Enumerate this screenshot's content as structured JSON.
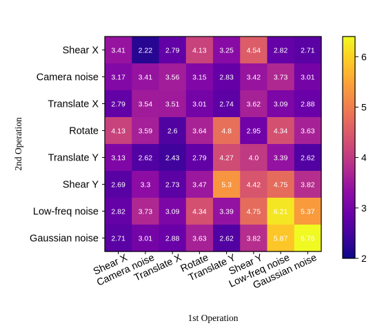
{
  "chart_data": {
    "type": "heatmap",
    "title": "",
    "xlabel": "1st Operation",
    "ylabel": "2nd Operation",
    "x_categories": [
      "Shear X",
      "Camera noise",
      "Translate X",
      "Rotate",
      "Translate Y",
      "Shear Y",
      "Low-freq noise",
      "Gaussian noise"
    ],
    "y_categories": [
      "Shear X",
      "Camera noise",
      "Translate X",
      "Rotate",
      "Translate Y",
      "Shear Y",
      "Low-freq noise",
      "Gaussian noise"
    ],
    "values": [
      [
        3.41,
        2.22,
        2.79,
        4.13,
        3.25,
        4.54,
        2.82,
        2.71
      ],
      [
        3.17,
        3.41,
        3.56,
        3.15,
        2.83,
        3.42,
        3.73,
        3.01
      ],
      [
        2.79,
        3.54,
        3.51,
        3.01,
        2.74,
        3.62,
        3.09,
        2.88
      ],
      [
        4.13,
        3.59,
        2.6,
        3.64,
        4.8,
        2.95,
        4.34,
        3.63
      ],
      [
        3.13,
        2.62,
        2.43,
        2.79,
        4.27,
        4.0,
        3.39,
        2.62
      ],
      [
        2.69,
        3.3,
        2.73,
        3.47,
        5.3,
        4.42,
        4.75,
        3.82
      ],
      [
        2.82,
        3.73,
        3.09,
        4.34,
        3.39,
        4.75,
        6.21,
        5.37
      ],
      [
        2.71,
        3.01,
        2.88,
        3.63,
        2.62,
        3.82,
        5.87,
        6.76
      ]
    ],
    "cell_labels": [
      [
        "3.41",
        "2.22",
        "2.79",
        "4.13",
        "3.25",
        "4.54",
        "2.82",
        "2.71"
      ],
      [
        "3.17",
        "3.41",
        "3.56",
        "3.15",
        "2.83",
        "3.42",
        "3.73",
        "3.01"
      ],
      [
        "2.79",
        "3.54",
        "3.51",
        "3.01",
        "2.74",
        "3.62",
        "3.09",
        "2.88"
      ],
      [
        "4.13",
        "3.59",
        "2.6",
        "3.64",
        "4.8",
        "2.95",
        "4.34",
        "3.63"
      ],
      [
        "3.13",
        "2.62",
        "2.43",
        "2.79",
        "4.27",
        "4.0",
        "3.39",
        "2.62"
      ],
      [
        "2.69",
        "3.3",
        "2.73",
        "3.47",
        "5.3",
        "4.42",
        "4.75",
        "3.82"
      ],
      [
        "2.82",
        "3.73",
        "3.09",
        "4.34",
        "3.39",
        "4.75",
        "6.21",
        "5.37"
      ],
      [
        "2.71",
        "3.01",
        "2.88",
        "3.63",
        "2.62",
        "3.82",
        "5.87",
        "6.76"
      ]
    ],
    "colormap": "plasma",
    "colorbar": {
      "range": [
        2,
        6.4
      ],
      "ticks": [
        2,
        3,
        4,
        5,
        6
      ],
      "tick_labels": [
        "2",
        "3",
        "4",
        "5",
        "6"
      ],
      "placement": "right"
    },
    "grid": false
  }
}
